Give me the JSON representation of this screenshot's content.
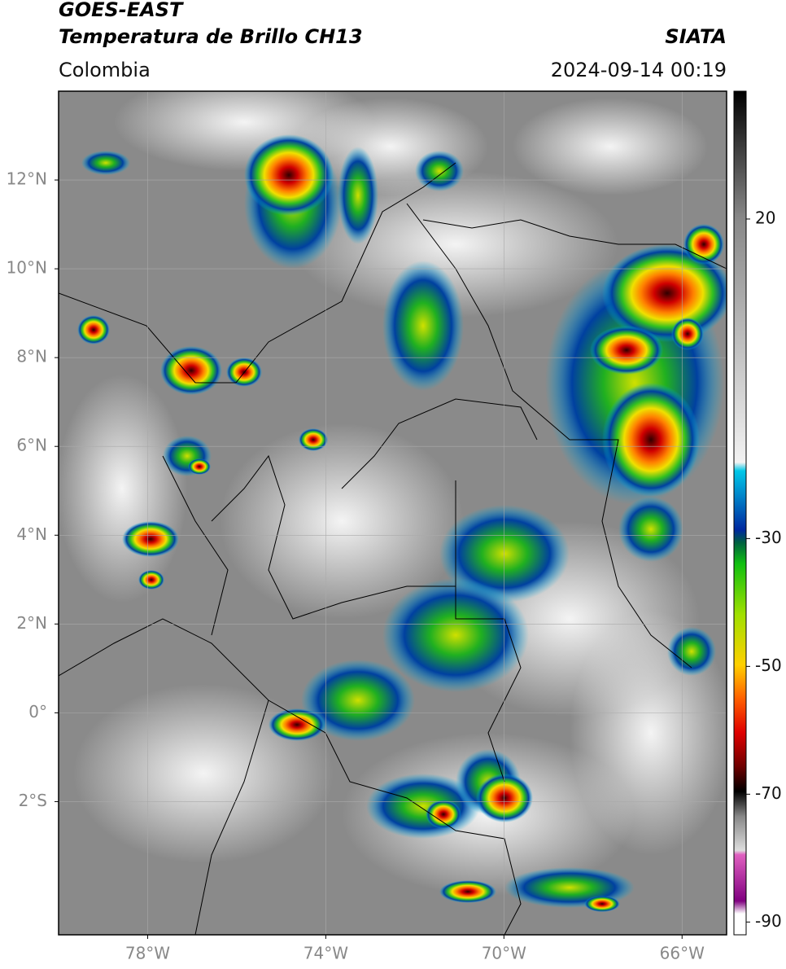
{
  "header": {
    "title": "GOES-EAST",
    "subtitle": "Temperatura de Brillo CH13",
    "region": "Colombia",
    "source": "SIATA",
    "datetime": "2024-09-14 00:19"
  },
  "map": {
    "xlim": [
      -80,
      -65
    ],
    "ylim": [
      -5,
      14
    ],
    "grid": true,
    "xticks": [
      {
        "value": -78,
        "label": "78°W"
      },
      {
        "value": -74,
        "label": "74°W"
      },
      {
        "value": -70,
        "label": "70°W"
      },
      {
        "value": -66,
        "label": "66°W"
      }
    ],
    "yticks": [
      {
        "value": 12,
        "label": "12°N"
      },
      {
        "value": 10,
        "label": "10°N"
      },
      {
        "value": 8,
        "label": "8°N"
      },
      {
        "value": 6,
        "label": "6°N"
      },
      {
        "value": 4,
        "label": "4°N"
      },
      {
        "value": 2,
        "label": "2°N"
      },
      {
        "value": 0,
        "label": "0°"
      },
      {
        "value": -2,
        "label": "2°S"
      }
    ]
  },
  "colorbar": {
    "lim": [
      -92,
      40
    ],
    "ticks": [
      20,
      -30,
      -50,
      -70,
      -90
    ]
  }
}
